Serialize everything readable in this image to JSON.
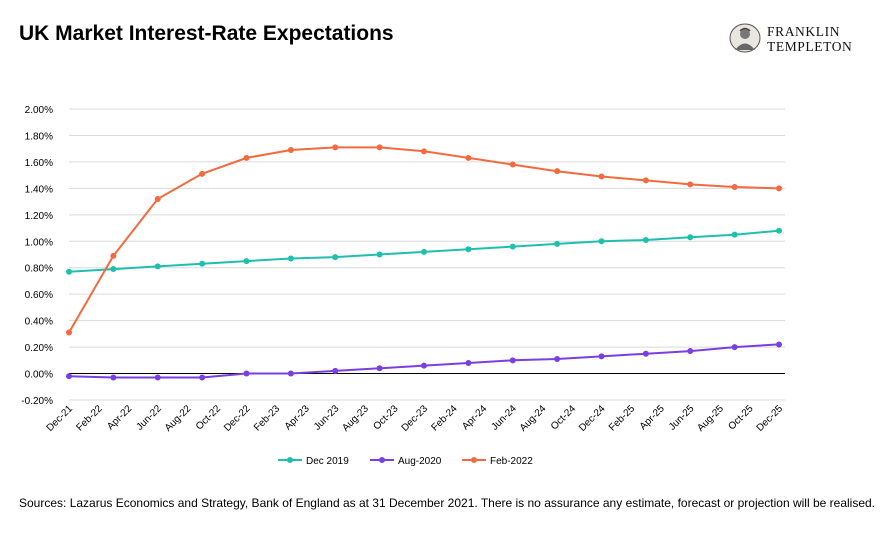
{
  "header": {
    "title": "UK Market Interest-Rate Expectations",
    "logo_line1": "FRANKLIN",
    "logo_line2": "TEMPLETON"
  },
  "colors": {
    "dec2019": "#1fbfb0",
    "aug2020": "#7a3fe0",
    "feb2022": "#f26a3d"
  },
  "chart_data": {
    "type": "line",
    "title": "",
    "xlabel": "",
    "ylabel": "",
    "ylim": [
      -0.2,
      2.0
    ],
    "ytick_step": 0.2,
    "grid": true,
    "legend_position": "bottom",
    "categories": [
      "Dec-21",
      "Feb-22",
      "Apr-22",
      "Jun-22",
      "Aug-22",
      "Oct-22",
      "Dec-22",
      "Feb-23",
      "Apr-23",
      "Jun-23",
      "Aug-23",
      "Oct-23",
      "Dec-23",
      "Feb-24",
      "Apr-24",
      "Jun-24",
      "Aug-24",
      "Oct-24",
      "Dec-24",
      "Feb-25",
      "Apr-25",
      "Jun-25",
      "Aug-25",
      "Oct-25",
      "Dec-25"
    ],
    "yticks": [
      "-0.20%",
      "0.00%",
      "0.20%",
      "0.40%",
      "0.60%",
      "0.80%",
      "1.00%",
      "1.20%",
      "1.40%",
      "1.60%",
      "1.80%",
      "2.00%"
    ],
    "series": [
      {
        "name": "Dec 2019",
        "color": "#1fbfb0",
        "points": [
          [
            0,
            0.77
          ],
          [
            1,
            0.79
          ],
          [
            2,
            0.81
          ],
          [
            3,
            0.83
          ],
          [
            4,
            0.85
          ],
          [
            5,
            0.87
          ],
          [
            6,
            0.88
          ],
          [
            7,
            0.9
          ],
          [
            8,
            0.92
          ],
          [
            9,
            0.94
          ],
          [
            10,
            0.96
          ],
          [
            11,
            0.98
          ],
          [
            12,
            1.0
          ],
          [
            13,
            1.01
          ],
          [
            14,
            1.03
          ],
          [
            15,
            1.05
          ],
          [
            16,
            1.08
          ]
        ]
      },
      {
        "name": "Aug-2020",
        "color": "#7a3fe0",
        "points": [
          [
            0,
            -0.02
          ],
          [
            1,
            -0.03
          ],
          [
            2,
            -0.03
          ],
          [
            3,
            -0.03
          ],
          [
            4,
            0.0
          ],
          [
            5,
            0.0
          ],
          [
            6,
            0.02
          ],
          [
            7,
            0.04
          ],
          [
            8,
            0.06
          ],
          [
            9,
            0.08
          ],
          [
            10,
            0.1
          ],
          [
            11,
            0.11
          ],
          [
            12,
            0.13
          ],
          [
            13,
            0.15
          ],
          [
            14,
            0.17
          ],
          [
            15,
            0.2
          ],
          [
            16,
            0.22
          ]
        ]
      },
      {
        "name": "Feb-2022",
        "color": "#f26a3d",
        "points": [
          [
            0,
            0.31
          ],
          [
            1,
            0.89
          ],
          [
            2,
            1.32
          ],
          [
            3,
            1.51
          ],
          [
            4,
            1.63
          ],
          [
            5,
            1.69
          ],
          [
            6,
            1.71
          ],
          [
            7,
            1.71
          ],
          [
            8,
            1.68
          ],
          [
            9,
            1.63
          ],
          [
            10,
            1.58
          ],
          [
            11,
            1.53
          ],
          [
            12,
            1.49
          ],
          [
            13,
            1.46
          ],
          [
            14,
            1.43
          ],
          [
            15,
            1.41
          ],
          [
            16,
            1.4
          ]
        ]
      }
    ]
  },
  "source": "Sources: Lazarus Economics and Strategy, Bank of England as at 31 December 2021. There is no assurance any estimate, forecast or projection will be realised."
}
